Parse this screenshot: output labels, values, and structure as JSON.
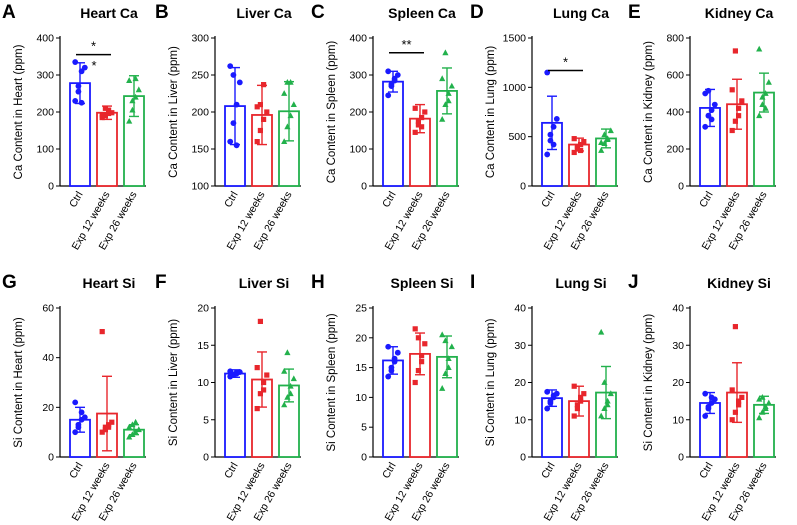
{
  "figure": {
    "colors": {
      "ctrl": "#1a1aff",
      "exp12": "#e8262c",
      "exp26": "#22b14c"
    }
  },
  "chart_data": [
    {
      "panel": "A",
      "title": "Heart Ca",
      "type": "bar",
      "ylabel": "Ca Content in Heart (ppm)",
      "ylim": [
        0,
        400
      ],
      "yticks": [
        0,
        100,
        200,
        300,
        400
      ],
      "categories": [
        "Ctrl",
        "Exp 12 weeks",
        "Exp 26 weeks"
      ],
      "values": [
        278,
        198,
        243
      ],
      "errors": [
        55,
        18,
        55
      ],
      "points": [
        [
          230,
          255,
          310,
          320,
          335,
          270,
          225
        ],
        [
          185,
          190,
          205,
          198,
          192,
          210,
          196
        ],
        [
          175,
          205,
          240,
          260,
          285,
          230,
          290
        ]
      ],
      "significance": [
        {
          "from": 0,
          "to": 1,
          "label": "*",
          "y": 355
        }
      ],
      "extra_marks": [
        {
          "category": 0,
          "label": "*",
          "y": 335
        }
      ]
    },
    {
      "panel": "B",
      "title": "Liver Ca",
      "type": "bar",
      "ylabel": "Ca Content in Liver (ppm)",
      "ylim": [
        100,
        300
      ],
      "yticks": [
        100,
        150,
        200,
        250,
        300
      ],
      "categories": [
        "Ctrl",
        "Exp 12 weeks",
        "Exp 26 weeks"
      ],
      "values": [
        208,
        196,
        201
      ],
      "errors": [
        52,
        40,
        40
      ],
      "points": [
        [
          160,
          185,
          210,
          240,
          262,
          250,
          155
        ],
        [
          160,
          175,
          190,
          200,
          207,
          210,
          237
        ],
        [
          160,
          180,
          195,
          210,
          225,
          240,
          240
        ]
      ],
      "significance": [],
      "extra_marks": []
    },
    {
      "panel": "C",
      "title": "Spleen Ca",
      "type": "bar",
      "ylabel": "Ca Content in Spleen (ppm)",
      "ylim": [
        0,
        400
      ],
      "yticks": [
        0,
        100,
        200,
        300,
        400
      ],
      "categories": [
        "Ctrl",
        "Exp 12 weeks",
        "Exp 26 weeks"
      ],
      "values": [
        282,
        182,
        257
      ],
      "errors": [
        28,
        38,
        62
      ],
      "points": [
        [
          245,
          270,
          285,
          300,
          310,
          275,
          290
        ],
        [
          145,
          165,
          185,
          200,
          210,
          175,
          160
        ],
        [
          180,
          220,
          250,
          270,
          290,
          360,
          230
        ]
      ],
      "significance": [
        {
          "from": 0,
          "to": 1,
          "label": "**",
          "y": 360
        }
      ],
      "extra_marks": []
    },
    {
      "panel": "D",
      "title": "Lung Ca",
      "type": "bar",
      "ylabel": "Ca Content in Lung (ppm)",
      "ylim": [
        0,
        1500
      ],
      "yticks": [
        0,
        500,
        1000,
        1500
      ],
      "categories": [
        "Ctrl",
        "Exp 12 weeks",
        "Exp 26 weeks"
      ],
      "values": [
        640,
        420,
        482
      ],
      "errors": [
        270,
        65,
        95
      ],
      "points": [
        [
          320,
          460,
          600,
          680,
          1150,
          520,
          420
        ],
        [
          340,
          380,
          420,
          450,
          480,
          400,
          360
        ],
        [
          360,
          430,
          480,
          560,
          440,
          520,
          470
        ]
      ],
      "significance": [
        {
          "from": 0,
          "to": 1,
          "label": "*",
          "y": 1170
        }
      ],
      "extra_marks": []
    },
    {
      "panel": "E",
      "title": "Kidney Ca",
      "type": "bar",
      "ylabel": "Ca Content in Kidney (ppm)",
      "ylim": [
        0,
        800
      ],
      "yticks": [
        0,
        200,
        400,
        600,
        800
      ],
      "categories": [
        "Ctrl",
        "Exp 12 weeks",
        "Exp 26 weeks"
      ],
      "values": [
        422,
        442,
        505
      ],
      "errors": [
        100,
        135,
        105
      ],
      "points": [
        [
          320,
          380,
          410,
          440,
          500,
          515,
          360
        ],
        [
          300,
          350,
          420,
          460,
          520,
          730,
          380
        ],
        [
          380,
          440,
          500,
          560,
          740,
          480,
          420
        ]
      ],
      "significance": [],
      "extra_marks": []
    },
    {
      "panel": "G",
      "title": "Heart Si",
      "type": "bar",
      "ylabel": "Si Content in Heart (ppm)",
      "ylim": [
        0,
        60
      ],
      "yticks": [
        0,
        20,
        40,
        60
      ],
      "categories": [
        "Ctrl",
        "Exp 12 weeks",
        "Exp 26 weeks"
      ],
      "values": [
        15,
        17.5,
        11
      ],
      "errors": [
        5,
        15,
        2
      ],
      "points": [
        [
          10,
          13,
          15,
          16,
          22,
          12,
          18
        ],
        [
          10,
          12,
          13,
          14,
          50.5,
          11,
          12
        ],
        [
          8,
          9,
          10,
          11,
          12,
          13,
          14
        ]
      ],
      "significance": [],
      "extra_marks": []
    },
    {
      "panel": "F",
      "title": "Liver Si",
      "type": "bar",
      "ylabel": "Si Content in Liver (ppm)",
      "ylim": [
        0,
        20
      ],
      "yticks": [
        0,
        5,
        10,
        15,
        20
      ],
      "categories": [
        "Ctrl",
        "Exp 12 weeks",
        "Exp 26 weeks"
      ],
      "values": [
        11.2,
        10.4,
        9.6
      ],
      "errors": [
        0.5,
        3.7,
        2.2
      ],
      "points": [
        [
          10.8,
          11.0,
          11.2,
          11.4,
          11.5,
          11.1,
          11.3
        ],
        [
          6.5,
          8.5,
          10,
          11,
          12,
          18.2,
          9
        ],
        [
          7,
          8,
          9.5,
          10.5,
          11.5,
          14,
          8.5
        ]
      ],
      "significance": [],
      "extra_marks": []
    },
    {
      "panel": "H",
      "title": "Spleen Si",
      "type": "bar",
      "ylabel": "Si Content in Spleen (ppm)",
      "ylim": [
        0,
        25
      ],
      "yticks": [
        0,
        5,
        10,
        15,
        20,
        25
      ],
      "categories": [
        "Ctrl",
        "Exp 12 weeks",
        "Exp 26 weeks"
      ],
      "values": [
        16.2,
        17.3,
        16.8
      ],
      "errors": [
        2.3,
        3.5,
        3.5
      ],
      "points": [
        [
          13.5,
          14.5,
          16,
          17.5,
          18.5,
          15,
          16.5
        ],
        [
          12.5,
          14.5,
          17,
          19,
          21.5,
          20,
          16
        ],
        [
          11.5,
          14,
          16.5,
          18.5,
          20.5,
          19.5,
          15
        ]
      ],
      "significance": [],
      "extra_marks": []
    },
    {
      "panel": "I",
      "title": "Lung Si",
      "type": "bar",
      "ylabel": "Si Content in Lung (ppm)",
      "ylim": [
        0,
        40
      ],
      "yticks": [
        0,
        10,
        20,
        30,
        40
      ],
      "categories": [
        "Ctrl",
        "Exp 12 weeks",
        "Exp 26 weeks"
      ],
      "values": [
        15.8,
        15,
        17.3
      ],
      "errors": [
        2.2,
        4,
        7
      ],
      "points": [
        [
          13,
          14.5,
          16,
          17,
          17.5,
          15,
          16.5
        ],
        [
          11,
          13,
          15,
          17,
          19,
          14,
          16
        ],
        [
          11,
          13,
          15,
          17,
          33.5,
          20,
          14
        ]
      ],
      "significance": [],
      "extra_marks": []
    },
    {
      "panel": "J",
      "title": "Kidney Si",
      "type": "bar",
      "ylabel": "Si Content in Kidney (ppm)",
      "ylim": [
        0,
        40
      ],
      "yticks": [
        0,
        10,
        20,
        30,
        40
      ],
      "categories": [
        "Ctrl",
        "Exp 12 weeks",
        "Exp 26 weeks"
      ],
      "values": [
        14.5,
        17.3,
        14
      ],
      "errors": [
        2.8,
        8,
        2.3
      ],
      "points": [
        [
          11,
          13,
          14.5,
          15.5,
          17,
          13.5,
          16
        ],
        [
          10,
          12,
          14,
          16,
          18,
          35,
          15
        ],
        [
          10.5,
          12,
          13.5,
          14.5,
          15.5,
          16,
          13
        ]
      ],
      "significance": [],
      "extra_marks": []
    }
  ]
}
